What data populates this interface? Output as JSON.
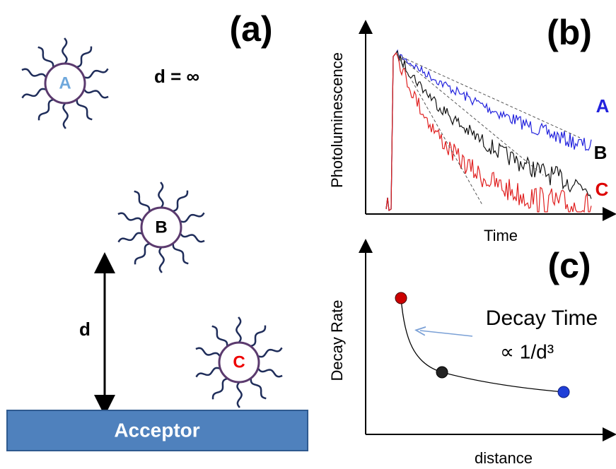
{
  "panel_a": {
    "label": "(a)",
    "d_infinity": "d = ∞",
    "particles": [
      {
        "label": "A"
      },
      {
        "label": "B"
      },
      {
        "label": "C"
      }
    ],
    "distance_label": "d",
    "acceptor": "Acceptor"
  },
  "panel_b": {
    "label": "(b)",
    "y_axis": "Photoluminescence",
    "x_axis": "Time",
    "curves": [
      {
        "label": "A"
      },
      {
        "label": "B"
      },
      {
        "label": "C"
      }
    ]
  },
  "panel_c": {
    "label": "(c)",
    "y_axis": "Decay Rate",
    "x_axis": "distance",
    "annotation": [
      "Decay Time",
      "∝ 1/d³"
    ]
  }
}
